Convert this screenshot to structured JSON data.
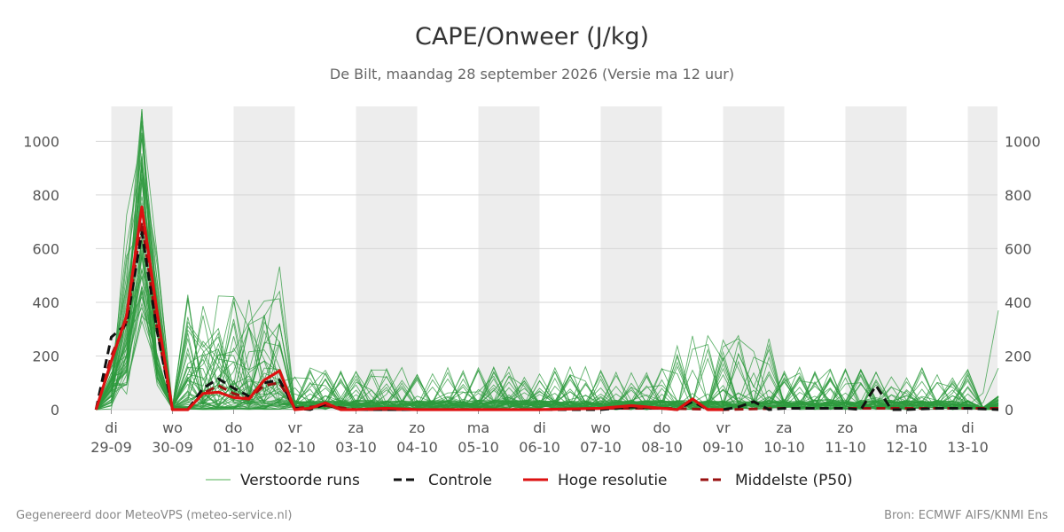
{
  "chart_data": {
    "type": "line",
    "title": "CAPE/Onweer (J/kg)",
    "subtitle": "De Bilt, maandag 28 september 2026 (Versie ma 12 uur)",
    "ylim": [
      0,
      1130
    ],
    "xlim": [
      0,
      15.0
    ],
    "yticks": [
      0,
      200,
      400,
      600,
      800,
      1000
    ],
    "grid": true,
    "legend_placement": "bottom-center",
    "x_unit": "days since 29-09 00:00 (CET)",
    "xticks": [
      {
        "day": "di",
        "date": "29-09"
      },
      {
        "day": "wo",
        "date": "30-09"
      },
      {
        "day": "do",
        "date": "01-10"
      },
      {
        "day": "vr",
        "date": "02-10"
      },
      {
        "day": "za",
        "date": "03-10"
      },
      {
        "day": "zo",
        "date": "04-10"
      },
      {
        "day": "ma",
        "date": "05-10"
      },
      {
        "day": "di",
        "date": "06-10"
      },
      {
        "day": "wo",
        "date": "07-10"
      },
      {
        "day": "do",
        "date": "08-10"
      },
      {
        "day": "vr",
        "date": "09-10"
      },
      {
        "day": "za",
        "date": "10-10"
      },
      {
        "day": "zo",
        "date": "11-10"
      },
      {
        "day": "ma",
        "date": "12-10"
      },
      {
        "day": "di",
        "date": "13-10"
      }
    ],
    "shaded_days": [
      [
        0,
        1
      ],
      [
        2,
        3
      ],
      [
        4,
        5
      ],
      [
        6,
        7
      ],
      [
        8,
        9
      ],
      [
        10,
        11
      ],
      [
        12,
        13
      ],
      [
        14,
        15
      ]
    ],
    "series": [
      {
        "name": "Controle",
        "style": "dashed",
        "color": "#111111",
        "points": [
          [
            -0.25,
            0
          ],
          [
            0,
            270
          ],
          [
            0.25,
            320
          ],
          [
            0.5,
            660
          ],
          [
            0.75,
            290
          ],
          [
            1,
            0
          ],
          [
            1.25,
            0
          ],
          [
            1.5,
            80
          ],
          [
            1.75,
            115
          ],
          [
            2,
            80
          ],
          [
            2.25,
            50
          ],
          [
            2.5,
            100
          ],
          [
            2.75,
            110
          ],
          [
            3,
            5
          ],
          [
            3.25,
            0
          ],
          [
            3.5,
            20
          ],
          [
            3.75,
            0
          ],
          [
            4,
            0
          ],
          [
            5,
            0
          ],
          [
            6,
            0
          ],
          [
            7,
            0
          ],
          [
            8,
            0
          ],
          [
            8.5,
            10
          ],
          [
            9,
            5
          ],
          [
            9.25,
            0
          ],
          [
            9.5,
            30
          ],
          [
            9.75,
            0
          ],
          [
            10,
            0
          ],
          [
            10.25,
            10
          ],
          [
            10.5,
            30
          ],
          [
            10.75,
            0
          ],
          [
            11,
            5
          ],
          [
            11.5,
            5
          ],
          [
            12,
            5
          ],
          [
            12.25,
            0
          ],
          [
            12.5,
            90
          ],
          [
            12.75,
            0
          ],
          [
            13,
            0
          ],
          [
            13.5,
            5
          ],
          [
            14,
            5
          ],
          [
            14.5,
            0
          ]
        ]
      },
      {
        "name": "Hoge resolutie",
        "style": "solid",
        "color": "#dd1111",
        "points": [
          [
            -0.25,
            0
          ],
          [
            0,
            180
          ],
          [
            0.25,
            350
          ],
          [
            0.5,
            755
          ],
          [
            0.75,
            360
          ],
          [
            1,
            0
          ],
          [
            1.25,
            0
          ],
          [
            1.5,
            60
          ],
          [
            1.75,
            65
          ],
          [
            2,
            45
          ],
          [
            2.25,
            40
          ],
          [
            2.5,
            110
          ],
          [
            2.75,
            145
          ],
          [
            3,
            0
          ],
          [
            3.25,
            5
          ],
          [
            3.5,
            25
          ],
          [
            3.75,
            0
          ],
          [
            4,
            0
          ],
          [
            4.5,
            5
          ],
          [
            5,
            0
          ],
          [
            6,
            0
          ],
          [
            7,
            0
          ],
          [
            8,
            5
          ],
          [
            8.5,
            15
          ],
          [
            9,
            5
          ],
          [
            9.25,
            0
          ],
          [
            9.5,
            40
          ],
          [
            9.75,
            0
          ],
          [
            10,
            0
          ]
        ]
      },
      {
        "name": "Middelste (P50)",
        "style": "dashed",
        "color": "#991111",
        "points": [
          [
            -0.25,
            0
          ],
          [
            0,
            200
          ],
          [
            0.25,
            330
          ],
          [
            0.5,
            700
          ],
          [
            0.75,
            300
          ],
          [
            1,
            0
          ],
          [
            1.25,
            0
          ],
          [
            1.5,
            60
          ],
          [
            1.75,
            90
          ],
          [
            2,
            60
          ],
          [
            2.25,
            40
          ],
          [
            2.5,
            90
          ],
          [
            2.75,
            100
          ],
          [
            3,
            5
          ],
          [
            3.5,
            15
          ],
          [
            4,
            0
          ],
          [
            5,
            0
          ],
          [
            6,
            0
          ],
          [
            7,
            0
          ],
          [
            8,
            5
          ],
          [
            9,
            5
          ],
          [
            10,
            0
          ],
          [
            11,
            5
          ],
          [
            12,
            5
          ],
          [
            13,
            5
          ],
          [
            14,
            5
          ],
          [
            14.5,
            5
          ]
        ]
      }
    ],
    "ensemble": {
      "name": "Verstoorde runs",
      "color": "#2e9a3e",
      "member_count": 50,
      "approx_max": 1120,
      "description": "50 perturbed member lines, peak ~29-09 evening (300-1120 J/kg), secondary peak 01-10/02-10 (up to ~620), mostly below 200 afterwards, rising at end to ~500"
    },
    "legend": [
      {
        "label": "Verstoorde runs",
        "style": "thin",
        "color": "#4caf50"
      },
      {
        "label": "Controle",
        "style": "dashed",
        "color": "#111111"
      },
      {
        "label": "Hoge resolutie",
        "style": "solid",
        "color": "#dd1111"
      },
      {
        "label": "Middelste (P50)",
        "style": "dashed",
        "color": "#991111"
      }
    ]
  },
  "footer": {
    "left": "Gegenereerd door MeteoVPS (meteo-service.nl)",
    "right": "Bron: ECMWF AIFS/KNMI Ens"
  }
}
